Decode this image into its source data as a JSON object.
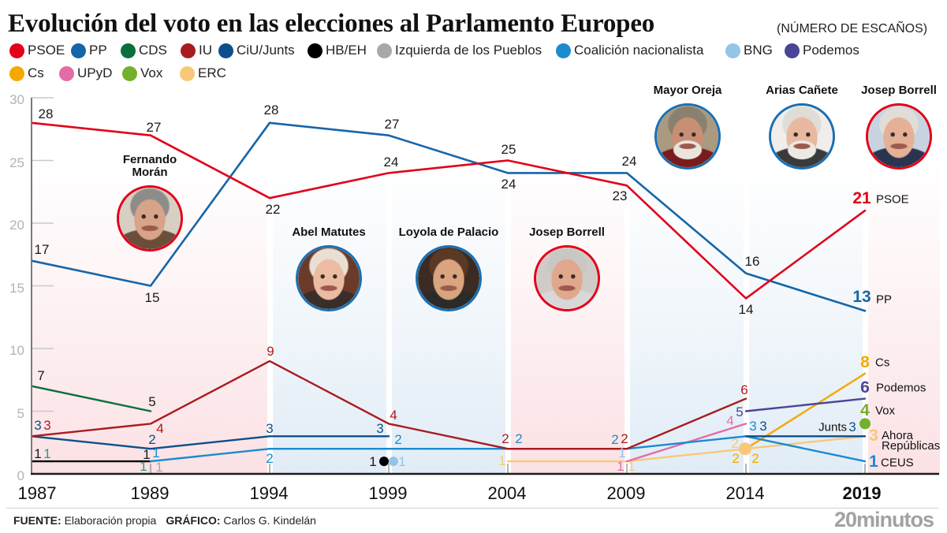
{
  "chart_data": {
    "type": "line",
    "title": "Evolución del voto en las elecciones al Parlamento Europeo",
    "subtitle": "(NÚMERO DE ESCAÑOS)",
    "xlabel": "",
    "ylabel": "",
    "x": [
      "1987",
      "1989",
      "1994",
      "1999",
      "2004",
      "2009",
      "2014",
      "2019"
    ],
    "x_highlight": "2019",
    "ylim": [
      0,
      30
    ],
    "y_ticks": [
      0,
      5,
      10,
      15,
      20,
      25,
      30
    ],
    "grid": false,
    "legend_position": "top",
    "series": [
      {
        "name": "PSOE",
        "color": "#e2001a",
        "values": [
          28,
          27,
          22,
          24,
          25,
          23,
          14,
          21
        ],
        "end_label": "PSOE"
      },
      {
        "name": "PP",
        "color": "#1565a8",
        "values": [
          17,
          15,
          28,
          27,
          24,
          24,
          16,
          13
        ],
        "end_label": "PP"
      },
      {
        "name": "CDS",
        "color": "#0b6e3c",
        "values": [
          7,
          5,
          null,
          null,
          null,
          null,
          null,
          null
        ]
      },
      {
        "name": "IU",
        "color": "#a81c1f",
        "values": [
          3,
          4,
          9,
          4,
          2,
          2,
          6,
          null
        ]
      },
      {
        "name": "CiU/Junts",
        "color": "#0c4f8c",
        "values": [
          3,
          2,
          3,
          3,
          null,
          null,
          3,
          3
        ],
        "end_label": "Junts"
      },
      {
        "name": "HB/EH",
        "color": "#000000",
        "values": [
          1,
          1,
          null,
          1,
          null,
          null,
          null,
          null
        ]
      },
      {
        "name": "Izquierda de los Pueblos",
        "color": "#a8a7ab",
        "values": [
          null,
          1,
          null,
          null,
          null,
          null,
          null,
          null
        ]
      },
      {
        "name": "Coalición nacionalista",
        "color": "#1a8bcf",
        "values": [
          null,
          1,
          2,
          2,
          2,
          2,
          3,
          1
        ],
        "end_label": "CEUS"
      },
      {
        "name": "BNG",
        "color": "#94c4e8",
        "values": [
          null,
          null,
          null,
          1,
          null,
          1,
          null,
          null
        ]
      },
      {
        "name": "Podemos",
        "color": "#4a4597",
        "values": [
          null,
          null,
          null,
          null,
          null,
          null,
          5,
          6
        ],
        "end_label": "Podemos"
      },
      {
        "name": "Cs",
        "color": "#f5a800",
        "values": [
          null,
          null,
          null,
          null,
          null,
          null,
          2,
          8
        ],
        "end_label": "Cs"
      },
      {
        "name": "UPyD",
        "color": "#e36ca8",
        "values": [
          null,
          null,
          null,
          null,
          null,
          1,
          4,
          null
        ]
      },
      {
        "name": "Vox",
        "color": "#74b02b",
        "values": [
          null,
          null,
          null,
          null,
          null,
          null,
          null,
          4
        ],
        "end_label": "Vox"
      },
      {
        "name": "ERC",
        "color": "#f8c878",
        "values": [
          null,
          null,
          null,
          null,
          1,
          1,
          2,
          3
        ],
        "end_label": "Ahora Repúblicas"
      },
      {
        "name": "",
        "color": "#1f9e8c",
        "values": [
          1,
          1,
          null,
          null,
          null,
          null,
          null,
          null
        ]
      }
    ],
    "extra_labels": [
      {
        "series": "Cs",
        "x": "2014",
        "text": "2"
      }
    ]
  },
  "portraits": [
    {
      "name": "Fernando Morán",
      "border_color": "#e2001a"
    },
    {
      "name": "Abel Matutes",
      "border_color": "#1a6fb3"
    },
    {
      "name": "Loyola de Palacio",
      "border_color": "#1a6fb3"
    },
    {
      "name": "Josep Borrell",
      "border_color": "#e2001a"
    },
    {
      "name": "Mayor Oreja",
      "border_color": "#1a6fb3"
    },
    {
      "name": "Arias Cañete",
      "border_color": "#1a6fb3"
    },
    {
      "name": "Josep Borrell",
      "border_color": "#e2001a"
    }
  ],
  "footer": {
    "source_label": "FUENTE:",
    "source": "Elaboración propia",
    "graphic_label": "GRÁFICO:",
    "graphic": "Carlos G. Kindelán",
    "logo": "20minutos"
  }
}
